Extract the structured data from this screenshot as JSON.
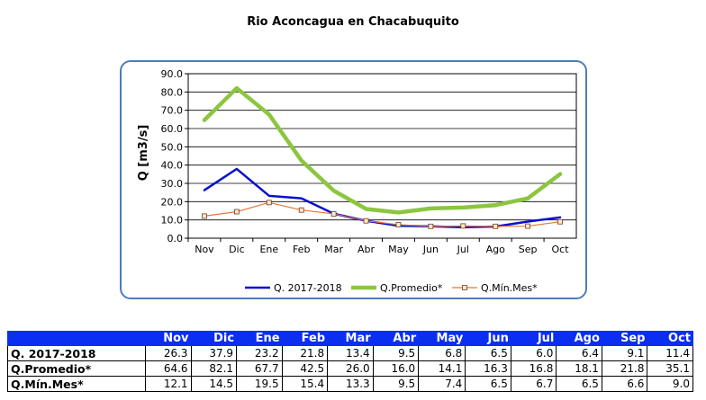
{
  "title": "Rio Aconcagua en Chacabuquito",
  "chart_data": {
    "type": "line",
    "title": "Rio Aconcagua en Chacabuquito",
    "xlabel": "",
    "ylabel": "Q [m3/s]",
    "categories": [
      "Nov",
      "Dic",
      "Ene",
      "Feb",
      "Mar",
      "Abr",
      "May",
      "Jun",
      "Jul",
      "Ago",
      "Sep",
      "Oct"
    ],
    "ylim": [
      0,
      90
    ],
    "yticks": [
      "0.0",
      "10.0",
      "20.0",
      "30.0",
      "40.0",
      "50.0",
      "60.0",
      "70.0",
      "80.0",
      "90.0"
    ],
    "grid": true,
    "legend": "bottom",
    "series": [
      {
        "name": "Q. 2017-2018",
        "color": "#0a10d0",
        "width": 2.5,
        "marker": false,
        "values": [
          26.3,
          37.9,
          23.2,
          21.8,
          13.4,
          9.5,
          6.8,
          6.5,
          6.0,
          6.4,
          9.1,
          11.4
        ]
      },
      {
        "name": "Q.Promedio*",
        "color": "#8cc63f",
        "width": 4.5,
        "marker": false,
        "values": [
          64.6,
          82.1,
          67.7,
          42.5,
          26.0,
          16.0,
          14.1,
          16.3,
          16.8,
          18.1,
          21.8,
          35.1
        ]
      },
      {
        "name": "Q.Mín.Mes*",
        "color": "#e2773a",
        "width": 1.2,
        "marker": true,
        "values": [
          12.1,
          14.5,
          19.5,
          15.4,
          13.3,
          9.5,
          7.4,
          6.5,
          6.7,
          6.5,
          6.6,
          9.0
        ]
      }
    ]
  },
  "table": {
    "headers": [
      "Nov",
      "Dic",
      "Ene",
      "Feb",
      "Mar",
      "Abr",
      "May",
      "Jun",
      "Jul",
      "Ago",
      "Sep",
      "Oct"
    ],
    "rows": [
      {
        "label": "Q. 2017-2018",
        "values": [
          "26.3",
          "37.9",
          "23.2",
          "21.8",
          "13.4",
          "9.5",
          "6.8",
          "6.5",
          "6.0",
          "6.4",
          "9.1",
          "11.4"
        ]
      },
      {
        "label": "Q.Promedio*",
        "values": [
          "64.6",
          "82.1",
          "67.7",
          "42.5",
          "26.0",
          "16.0",
          "14.1",
          "16.3",
          "16.8",
          "18.1",
          "21.8",
          "35.1"
        ]
      },
      {
        "label": "Q.Mín.Mes*",
        "values": [
          "12.1",
          "14.5",
          "19.5",
          "15.4",
          "13.3",
          "9.5",
          "7.4",
          "6.5",
          "6.7",
          "6.5",
          "6.6",
          "9.0"
        ]
      }
    ]
  }
}
